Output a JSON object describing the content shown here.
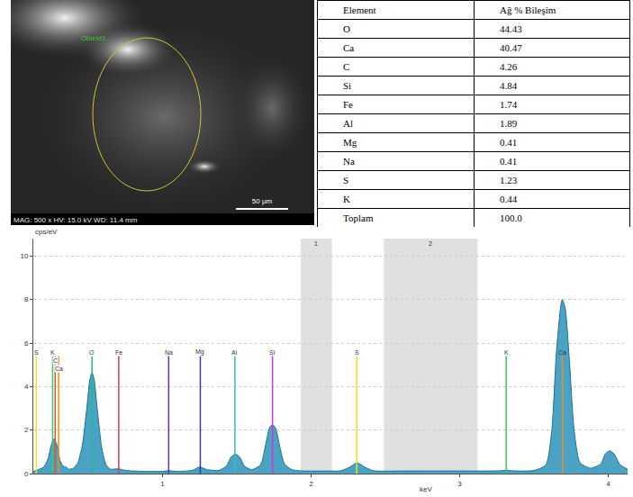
{
  "image": {
    "label": "Obiekt1",
    "info": "MAG: 500 x  HV: 15.0 kV  WD: 11.4 mm",
    "scale_bar": "50 µm"
  },
  "table": {
    "header": [
      "Element",
      "Ağ % Bileşim"
    ],
    "rows": [
      [
        "O",
        "44.43"
      ],
      [
        "Ca",
        "40.47"
      ],
      [
        "C",
        "4.26"
      ],
      [
        "Si",
        "4.84"
      ],
      [
        "Fe",
        "1.74"
      ],
      [
        "Al",
        "1.89"
      ],
      [
        "Mg",
        "0.41"
      ],
      [
        "Na",
        "0.41"
      ],
      [
        "S",
        "1.23"
      ],
      [
        "K",
        "0.44"
      ],
      [
        "Toplam",
        "100.0"
      ]
    ]
  },
  "chart_data": {
    "type": "area",
    "x_label": "keV",
    "y_label": "cps/eV",
    "color": "#4aa3c4",
    "x": [
      0.13,
      0.17,
      0.2,
      0.23,
      0.25,
      0.27,
      0.29,
      0.31,
      0.33,
      0.35,
      0.37,
      0.4,
      0.43,
      0.46,
      0.49,
      0.51,
      0.525,
      0.54,
      0.56,
      0.59,
      0.62,
      0.65,
      0.7,
      0.75,
      0.8,
      0.9,
      1.0,
      1.04,
      1.1,
      1.2,
      1.25,
      1.3,
      1.38,
      1.43,
      1.46,
      1.49,
      1.52,
      1.55,
      1.6,
      1.66,
      1.69,
      1.72,
      1.74,
      1.76,
      1.79,
      1.82,
      1.87,
      1.95,
      2.1,
      2.2,
      2.26,
      2.31,
      2.36,
      2.42,
      2.6,
      2.8,
      3.0,
      3.2,
      3.28,
      3.31,
      3.35,
      3.5,
      3.58,
      3.62,
      3.65,
      3.68,
      3.69,
      3.71,
      3.74,
      3.77,
      3.81,
      3.88,
      3.95,
      3.98,
      4.01,
      4.04,
      4.08,
      4.13
    ],
    "values": [
      0.1,
      0.2,
      0.3,
      0.7,
      1.3,
      1.6,
      1.3,
      0.6,
      0.35,
      0.3,
      0.2,
      0.25,
      0.5,
      1.3,
      3.0,
      4.3,
      4.65,
      4.3,
      3.0,
      1.2,
      0.4,
      0.2,
      0.22,
      0.15,
      0.12,
      0.1,
      0.1,
      0.13,
      0.1,
      0.15,
      0.3,
      0.18,
      0.15,
      0.35,
      0.75,
      0.9,
      0.75,
      0.35,
      0.18,
      0.4,
      1.2,
      2.1,
      2.25,
      2.1,
      1.2,
      0.45,
      0.18,
      0.12,
      0.12,
      0.13,
      0.3,
      0.5,
      0.3,
      0.13,
      0.12,
      0.12,
      0.12,
      0.12,
      0.13,
      0.16,
      0.13,
      0.14,
      0.4,
      2.0,
      5.5,
      7.7,
      8.0,
      7.6,
      5.0,
      2.0,
      0.5,
      0.25,
      0.45,
      0.9,
      1.05,
      0.9,
      0.4,
      0.2
    ],
    "xlim": [
      0.13,
      4.13
    ],
    "ylim": [
      0,
      10.8
    ],
    "xticks": [
      1,
      2,
      3,
      4
    ],
    "yticks": [
      0,
      2,
      4,
      6,
      8,
      10
    ],
    "grid": true,
    "element_lines": [
      {
        "label": "S",
        "x": 0.15,
        "color": "#e6e619"
      },
      {
        "label": "K",
        "x": 0.26,
        "color": "#33cc66"
      },
      {
        "label": "C",
        "x": 0.277,
        "color": "#e8502a"
      },
      {
        "label": "Ca",
        "x": 0.3,
        "color": "#ee8a1e"
      },
      {
        "label": "O",
        "x": 0.525,
        "color": "#2bb58f"
      },
      {
        "label": "Fe",
        "x": 0.705,
        "color": "#d6336c"
      },
      {
        "label": "Na",
        "x": 1.041,
        "color": "#6a2fa0"
      },
      {
        "label": "Mg",
        "x": 1.254,
        "color": "#3b3b9c"
      },
      {
        "label": "Al",
        "x": 1.487,
        "color": "#33c1c1"
      },
      {
        "label": "Si",
        "x": 1.74,
        "color": "#d633d6"
      },
      {
        "label": "S",
        "x": 2.307,
        "color": "#e6e619"
      },
      {
        "label": "K",
        "x": 3.313,
        "color": "#33cc66"
      },
      {
        "label": "Ca",
        "x": 3.691,
        "color": "#ee8a1e"
      }
    ],
    "regions": [
      {
        "label": "1",
        "x0": 1.93,
        "x1": 2.14
      },
      {
        "label": "2",
        "x0": 2.49,
        "x1": 3.12
      }
    ]
  }
}
